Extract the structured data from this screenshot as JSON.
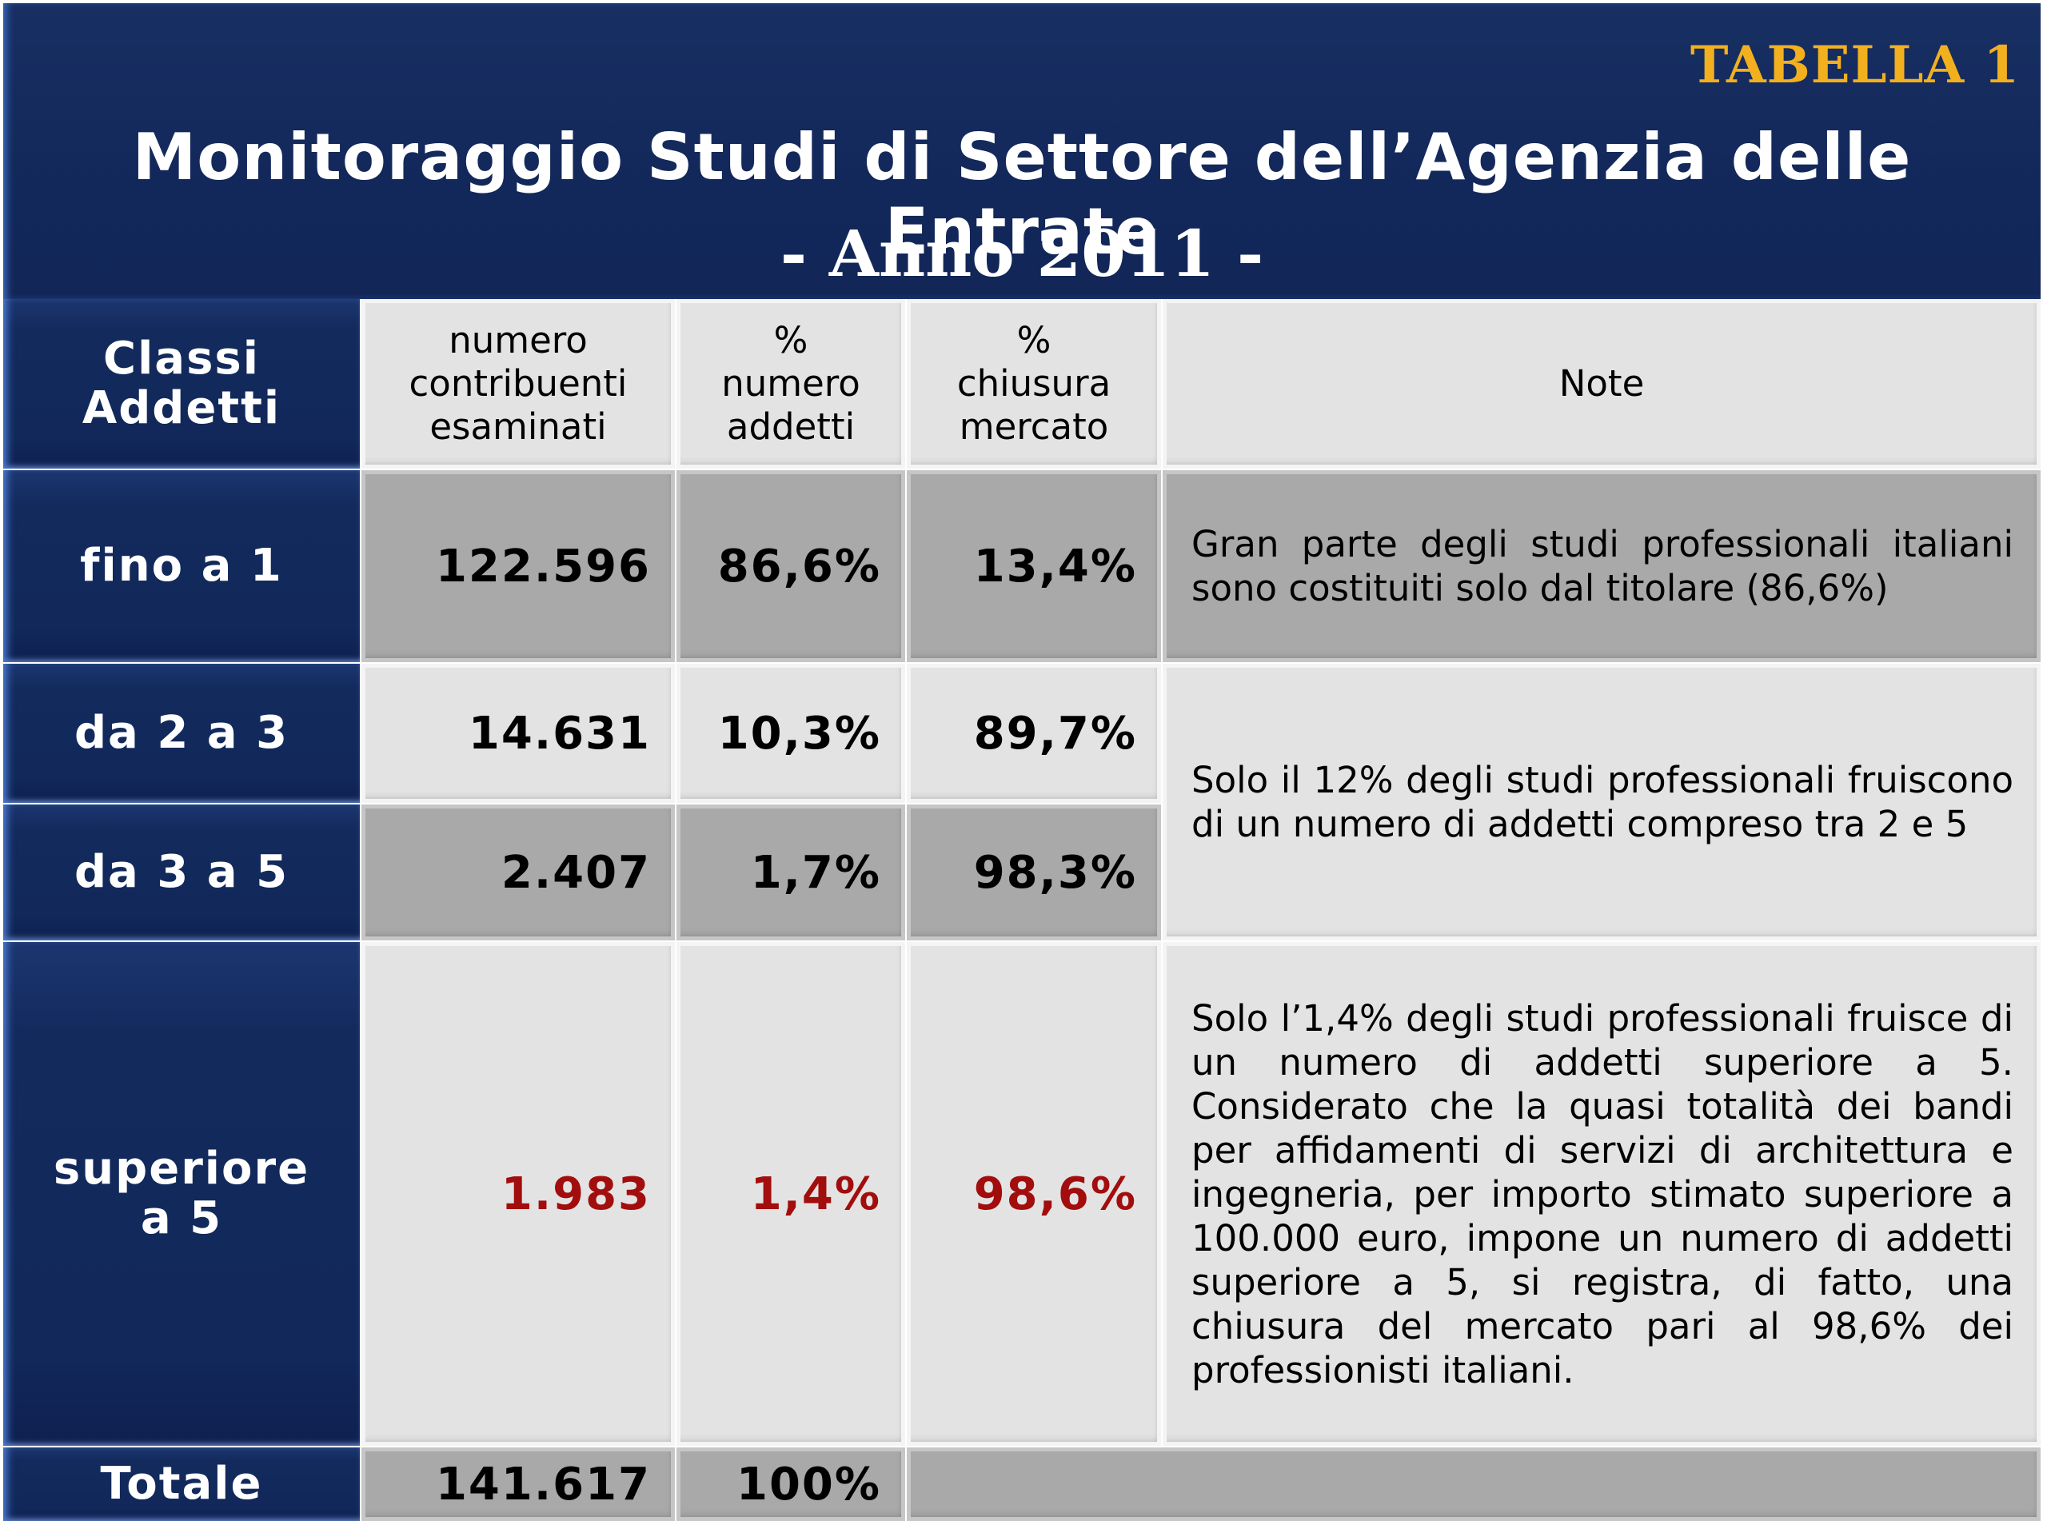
{
  "header": {
    "tag": "TABELLA 1",
    "title": "Monitoraggio Studi di Settore dell’Agenzia delle Entrate",
    "subtitle": "- Anno 2011 -"
  },
  "table": {
    "headers": {
      "classi": "Classi Addetti",
      "contribuenti": "numero contribuenti esaminati",
      "perc_addetti": "% numero addetti",
      "perc_chiusura": "% chiusura mercato",
      "note": "Note"
    },
    "rows": [
      {
        "label": "fino a 1",
        "contribuenti": "122.596",
        "perc_addetti": "86,6%",
        "perc_chiusura": "13,4%"
      },
      {
        "label": "da 2 a 3",
        "contribuenti": "14.631",
        "perc_addetti": "10,3%",
        "perc_chiusura": "89,7%"
      },
      {
        "label": "da 3 a 5",
        "contribuenti": "2.407",
        "perc_addetti": "1,7%",
        "perc_chiusura": "98,3%"
      },
      {
        "label": "superiore a 5",
        "contribuenti": "1.983",
        "perc_addetti": "1,4%",
        "perc_chiusura": "98,6%"
      }
    ],
    "notes": [
      "Gran parte degli studi professionali italiani sono costituiti solo dal titolare (86,6%)",
      "Solo il 12% degli studi professionali fruiscono di un numero di addetti compreso tra  2 e 5",
      "Solo l’1,4% degli studi professionali fruisce di un numero di addetti superiore a 5. Considerato  che la quasi totalità dei bandi per affidamenti di servizi di architettura e ingegneria, per importo stimato superiore a 100.000 euro, impone un numero di addetti superiore a 5, si registra, di fatto,  una chiusura del mercato pari al 98,6% dei professionisti italiani."
    ],
    "totale": {
      "label": "Totale",
      "contribuenti": "141.617",
      "perc_addetti": "100%"
    }
  },
  "colors": {
    "header_blue": "#13285a",
    "tag_gold": "#f2b01e",
    "highlight_red": "#a20d0d",
    "cell_light": "#e3e3e3",
    "cell_dark": "#a9a9a9"
  }
}
